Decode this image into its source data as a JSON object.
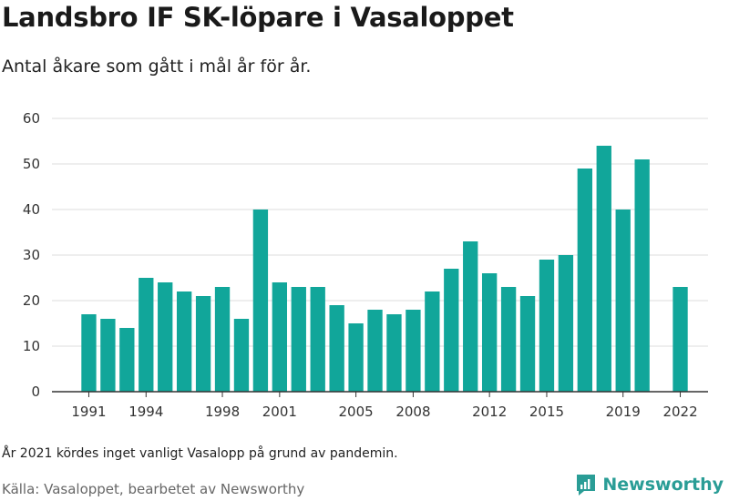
{
  "header": {
    "title": "Landsbro IF SK-löpare i Vasaloppet",
    "subtitle": "Antal åkare som gått i mål år för år."
  },
  "footer": {
    "note": "År 2021 kördes inget vanligt Vasalopp på grund av pandemin.",
    "source": "Källa: Vasaloppet, bearbetet av Newsworthy",
    "brand": "Newsworthy",
    "brand_icon": "newsworthy-logo-icon"
  },
  "colors": {
    "bar": "#11a69a",
    "grid": "#dddddd",
    "axis": "#333333",
    "brand": "#2a9d96"
  },
  "chart_data": {
    "type": "bar",
    "title": "Landsbro IF SK-löpare i Vasaloppet",
    "subtitle": "Antal åkare som gått i mål år för år.",
    "xlabel": "",
    "ylabel": "",
    "ylim": [
      0,
      60
    ],
    "yticks": [
      0,
      10,
      20,
      30,
      40,
      50,
      60
    ],
    "grid": true,
    "categories": [
      1991,
      1992,
      1993,
      1994,
      1995,
      1996,
      1997,
      1998,
      1999,
      2000,
      2001,
      2002,
      2003,
      2004,
      2005,
      2006,
      2007,
      2008,
      2009,
      2010,
      2011,
      2012,
      2013,
      2014,
      2015,
      2016,
      2017,
      2018,
      2019,
      2020,
      2021,
      2022
    ],
    "values": [
      17,
      16,
      14,
      25,
      24,
      22,
      21,
      23,
      16,
      40,
      24,
      23,
      23,
      19,
      15,
      18,
      17,
      18,
      22,
      27,
      33,
      26,
      23,
      21,
      29,
      30,
      49,
      54,
      40,
      51,
      null,
      23
    ],
    "xtick_labels": [
      "1991",
      "1994",
      "1998",
      "2001",
      "2005",
      "2008",
      "2012",
      "2015",
      "2019",
      "2022"
    ]
  }
}
